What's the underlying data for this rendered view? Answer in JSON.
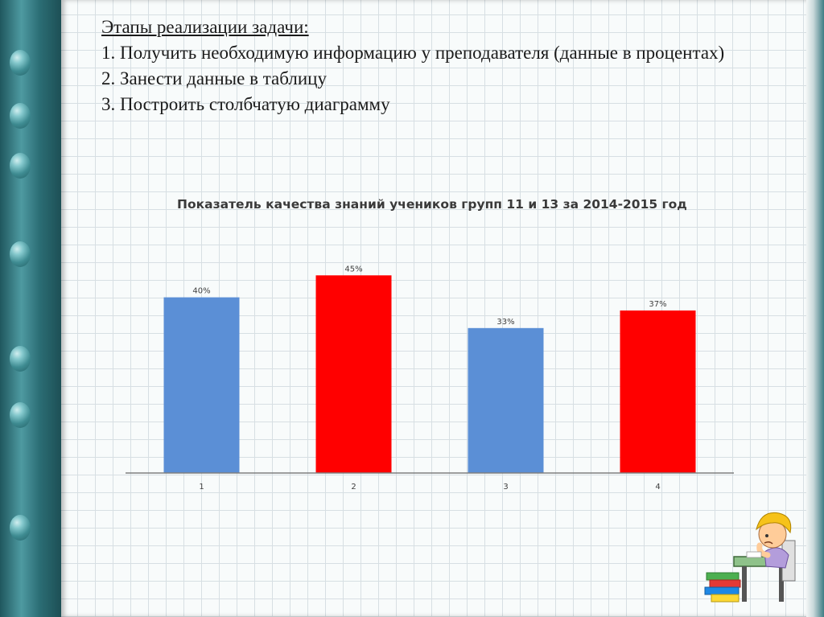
{
  "slide": {
    "heading": "Этапы реализации задачи:",
    "steps": [
      "1. Получить необходимую информацию у преподавателя (данные в процентах)",
      "2. Занести данные в таблицу",
      "3. Построить столбчатую диаграмму"
    ]
  },
  "chart_data": {
    "type": "bar",
    "title": "Показатель качества знаний учеников групп 11 и 13 за 2014-2015 год",
    "categories": [
      "1",
      "2",
      "3",
      "4"
    ],
    "values": [
      40,
      45,
      33,
      37
    ],
    "data_labels": [
      "40%",
      "45%",
      "33%",
      "37%"
    ],
    "bar_colors": [
      "#5b8fd6",
      "#ff0000",
      "#5b8fd6",
      "#ff0000"
    ],
    "ylim": [
      0,
      50
    ],
    "grid": false,
    "xlabel": "",
    "ylabel": ""
  },
  "decor": {
    "illustration": "student-at-desk-clipart",
    "left_ornament": "water-drops"
  }
}
